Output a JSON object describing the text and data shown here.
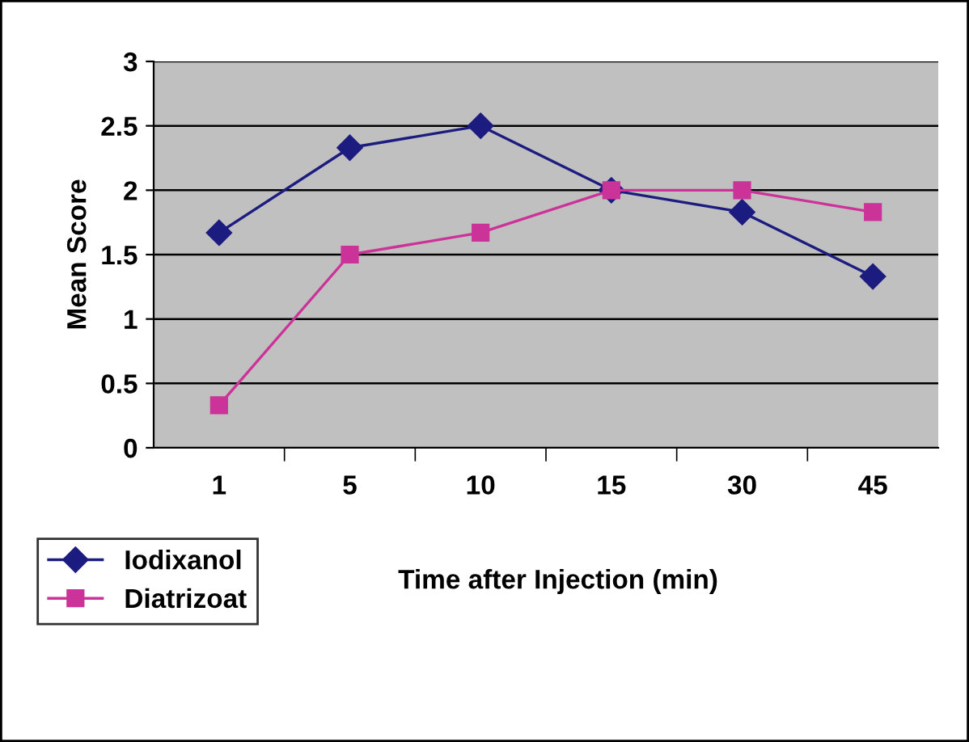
{
  "chart_data": {
    "type": "line",
    "xlabel": "Time after Injection (min)",
    "ylabel": "Mean Score",
    "categories": [
      "1",
      "5",
      "10",
      "15",
      "30",
      "45"
    ],
    "series": [
      {
        "name": "Iodixanol",
        "color": "#1c1c80",
        "marker": "diamond",
        "values": [
          1.67,
          2.33,
          2.5,
          2.0,
          1.83,
          1.33
        ]
      },
      {
        "name": "Diatrizoat",
        "color": "#cc3399",
        "marker": "square",
        "values": [
          0.33,
          1.5,
          1.67,
          2.0,
          2.0,
          1.83
        ]
      }
    ],
    "ylim": [
      0,
      3
    ],
    "yticks": [
      0,
      0.5,
      1,
      1.5,
      2,
      2.5,
      3
    ],
    "grid": "y",
    "legend": "bottom left",
    "line_style": "solid"
  }
}
